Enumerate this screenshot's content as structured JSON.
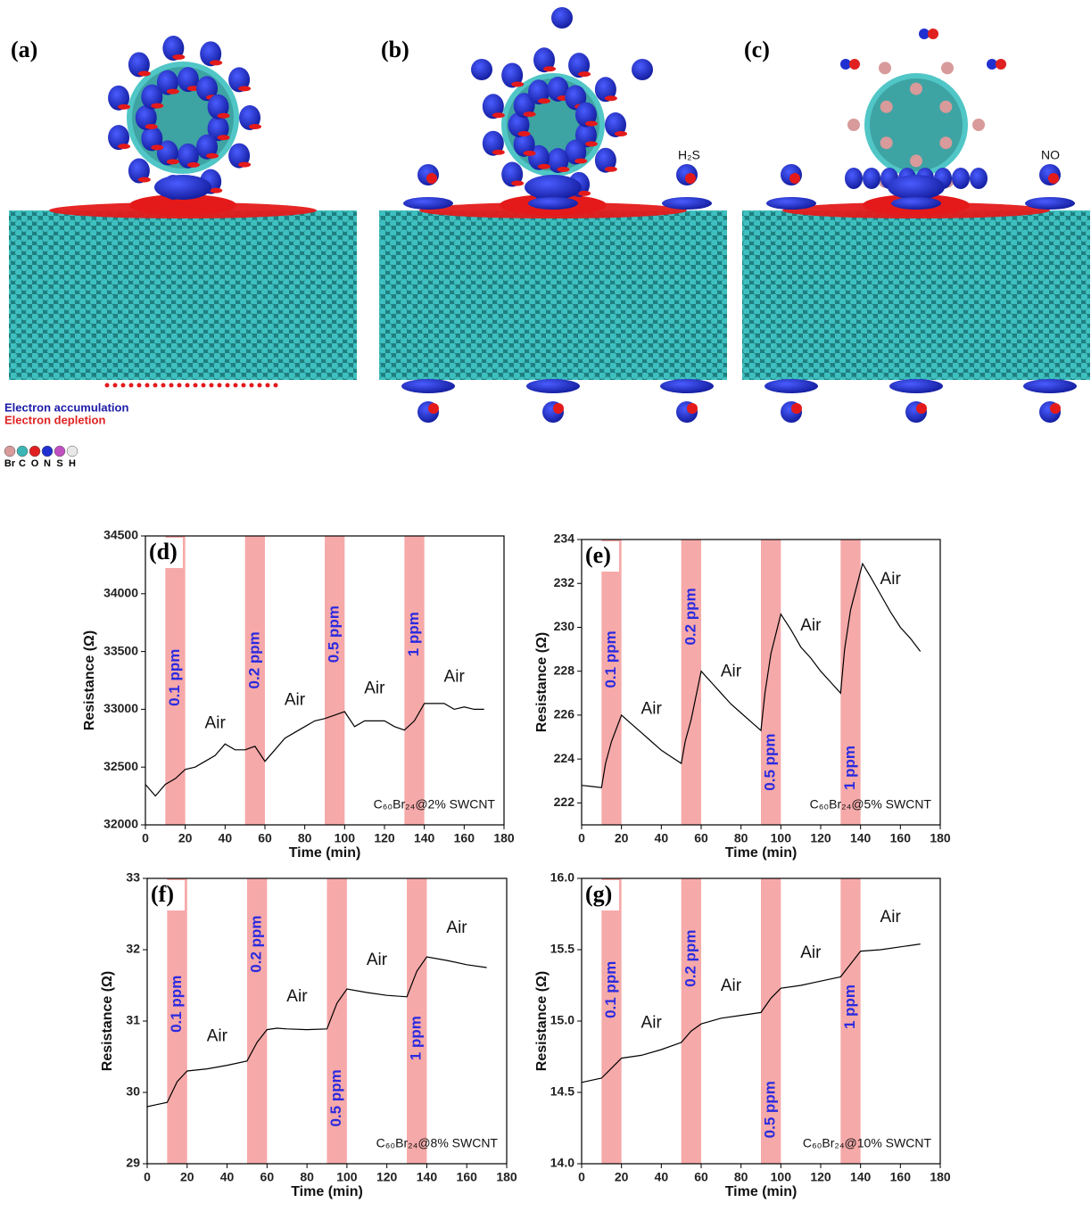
{
  "figure": {
    "panels": [
      {
        "label": "(a)"
      },
      {
        "label": "(b)",
        "molecule": "H₂S"
      },
      {
        "label": "(c)",
        "molecule": "NO"
      }
    ],
    "legend": {
      "accumulation": "Electron accumulation",
      "depletion": "Electron depletion",
      "elements": [
        {
          "symbol": "Br",
          "color": "#d89a9a"
        },
        {
          "symbol": "C",
          "color": "#3bb5b5"
        },
        {
          "symbol": "O",
          "color": "#e02020"
        },
        {
          "symbol": "N",
          "color": "#2030d0"
        },
        {
          "symbol": "S",
          "color": "#c050c0"
        },
        {
          "symbol": "H",
          "color": "#e8e8e8"
        }
      ]
    }
  },
  "chart_data": [
    {
      "type": "line",
      "panel": "(d)",
      "annotation": "C₆₀Br₂₄@2% SWCNT",
      "x_label": "Time (min)",
      "y_label": "Resistance (Ω)",
      "xlim": [
        0,
        180
      ],
      "xticks": [
        0,
        20,
        40,
        60,
        80,
        100,
        120,
        140,
        160,
        180
      ],
      "ylim": [
        32000,
        34500
      ],
      "yticks": [
        32000,
        32500,
        33000,
        33500,
        34000,
        34500
      ],
      "x": [
        0,
        5,
        10,
        15,
        20,
        25,
        30,
        35,
        40,
        45,
        50,
        55,
        60,
        65,
        70,
        75,
        80,
        85,
        90,
        95,
        100,
        105,
        110,
        115,
        120,
        125,
        130,
        135,
        140,
        145,
        150,
        155,
        160,
        165,
        170
      ],
      "series": [
        {
          "color": "#000000",
          "values": [
            32350,
            32250,
            32350,
            32400,
            32480,
            32500,
            32550,
            32600,
            32700,
            32650,
            32650,
            32680,
            32550,
            32650,
            32750,
            32800,
            32850,
            32900,
            32920,
            32950,
            32980,
            32850,
            32900,
            32900,
            32900,
            32850,
            32820,
            32900,
            33050,
            33050,
            33050,
            33000,
            33020,
            33000,
            33000
          ]
        }
      ],
      "band_color": "#f6a9a9",
      "bands": [
        {
          "range": [
            10,
            20
          ],
          "label": "0.1 ppm"
        },
        {
          "range": [
            50,
            60
          ],
          "label": "0.2 ppm"
        },
        {
          "range": [
            90,
            100
          ],
          "label": "0.5 ppm"
        },
        {
          "range": [
            130,
            140
          ],
          "label": "1 ppm"
        }
      ],
      "air_labels": [
        "Air",
        "Air",
        "Air",
        "Air"
      ]
    },
    {
      "type": "line",
      "panel": "(e)",
      "annotation": "C₆₀Br₂₄@5% SWCNT",
      "x_label": "Time (min)",
      "y_label": "Resistance (Ω)",
      "xlim": [
        0,
        180
      ],
      "xticks": [
        0,
        20,
        40,
        60,
        80,
        100,
        120,
        140,
        160,
        180
      ],
      "ylim": [
        221,
        234
      ],
      "yticks": [
        222,
        224,
        226,
        228,
        230,
        232,
        234
      ],
      "x": [
        0,
        5,
        10,
        12,
        15,
        20,
        25,
        30,
        35,
        40,
        45,
        50,
        52,
        55,
        60,
        65,
        70,
        75,
        80,
        85,
        90,
        92,
        95,
        100,
        105,
        110,
        115,
        120,
        125,
        130,
        132,
        135,
        141,
        145,
        150,
        155,
        160,
        165,
        170
      ],
      "series": [
        {
          "color": "#000000",
          "values": [
            222.8,
            222.75,
            222.7,
            223.8,
            224.8,
            226,
            225.6,
            225.2,
            224.8,
            224.4,
            224.1,
            223.8,
            224.8,
            225.8,
            228,
            227.5,
            227,
            226.5,
            226.1,
            225.7,
            225.3,
            227,
            228.8,
            230.6,
            229.9,
            229.1,
            228.6,
            228,
            227.5,
            227,
            229,
            230.8,
            232.9,
            232.3,
            231.5,
            230.7,
            230,
            229.5,
            228.9
          ]
        }
      ],
      "band_color": "#f6a9a9",
      "bands": [
        {
          "range": [
            10,
            20
          ],
          "label": "0.1 ppm"
        },
        {
          "range": [
            50,
            60
          ],
          "label": "0.2 ppm"
        },
        {
          "range": [
            90,
            100
          ],
          "label": "0.5 ppm"
        },
        {
          "range": [
            130,
            140
          ],
          "label": "1 ppm"
        }
      ],
      "air_labels": [
        "Air",
        "Air",
        "Air",
        "Air"
      ]
    },
    {
      "type": "line",
      "panel": "(f)",
      "annotation": "C₆₀Br₂₄@8% SWCNT",
      "x_label": "Time (min)",
      "y_label": "Resistance (Ω)",
      "xlim": [
        0,
        180
      ],
      "xticks": [
        0,
        20,
        40,
        60,
        80,
        100,
        120,
        140,
        160,
        180
      ],
      "ylim": [
        29,
        33
      ],
      "yticks": [
        29,
        30,
        31,
        32,
        33
      ],
      "x": [
        0,
        5,
        10,
        15,
        20,
        30,
        40,
        50,
        55,
        60,
        65,
        70,
        80,
        90,
        95,
        100,
        110,
        120,
        130,
        135,
        140,
        150,
        160,
        170
      ],
      "series": [
        {
          "color": "#000000",
          "values": [
            29.8,
            29.83,
            29.86,
            30.15,
            30.3,
            30.33,
            30.38,
            30.44,
            30.7,
            30.88,
            30.9,
            30.89,
            30.88,
            30.89,
            31.25,
            31.45,
            31.4,
            31.36,
            31.34,
            31.7,
            31.9,
            31.85,
            31.79,
            31.75
          ]
        }
      ],
      "band_color": "#f6a9a9",
      "bands": [
        {
          "range": [
            10,
            20
          ],
          "label": "0.1 ppm"
        },
        {
          "range": [
            50,
            60
          ],
          "label": "0.2 ppm"
        },
        {
          "range": [
            90,
            100
          ],
          "label": "0.5 ppm"
        },
        {
          "range": [
            130,
            140
          ],
          "label": "1 ppm"
        }
      ],
      "air_labels": [
        "Air",
        "Air",
        "Air",
        "Air"
      ]
    },
    {
      "type": "line",
      "panel": "(g)",
      "annotation": "C₆₀Br₂₄@10% SWCNT",
      "x_label": "Time (min)",
      "y_label": "Resistance (Ω)",
      "xlim": [
        0,
        180
      ],
      "xticks": [
        0,
        20,
        40,
        60,
        80,
        100,
        120,
        140,
        160,
        180
      ],
      "ylim": [
        14,
        16
      ],
      "yticks": [
        {
          "value": 14,
          "label": "14.0"
        },
        14.5,
        {
          "value": 15,
          "label": "15.0"
        },
        15.5,
        {
          "value": 16,
          "label": "16.0"
        }
      ],
      "x": [
        0,
        10,
        15,
        20,
        30,
        40,
        50,
        55,
        60,
        70,
        80,
        90,
        95,
        100,
        110,
        120,
        130,
        135,
        140,
        150,
        160,
        170
      ],
      "series": [
        {
          "color": "#000000",
          "values": [
            14.57,
            14.6,
            14.67,
            14.74,
            14.76,
            14.8,
            14.85,
            14.93,
            14.98,
            15.02,
            15.04,
            15.06,
            15.16,
            15.23,
            15.25,
            15.28,
            15.31,
            15.4,
            15.49,
            15.5,
            15.52,
            15.54
          ]
        }
      ],
      "band_color": "#f6a9a9",
      "bands": [
        {
          "range": [
            10,
            20
          ],
          "label": "0.1 ppm"
        },
        {
          "range": [
            50,
            60
          ],
          "label": "0.2 ppm"
        },
        {
          "range": [
            90,
            100
          ],
          "label": "0.5 ppm"
        },
        {
          "range": [
            130,
            140
          ],
          "label": "1 ppm"
        }
      ],
      "air_labels": [
        "Air",
        "Air",
        "Air",
        "Air"
      ]
    }
  ]
}
